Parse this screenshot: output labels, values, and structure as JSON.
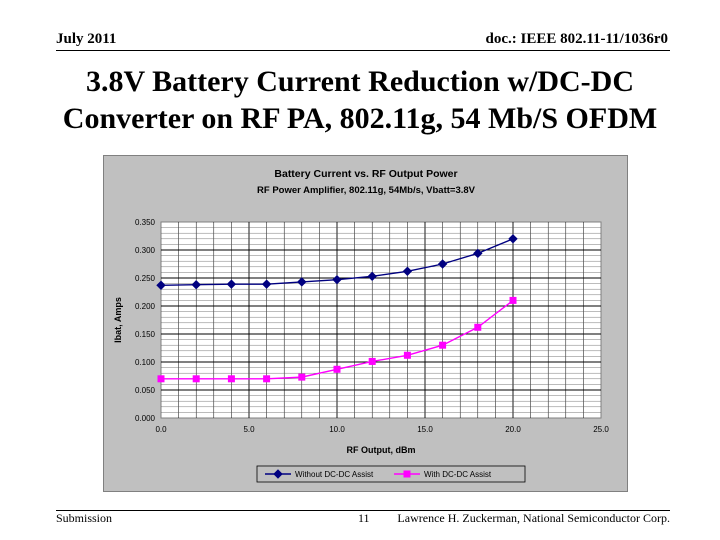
{
  "header": {
    "date": "July 2011",
    "doc": "doc.: IEEE 802.11-11/1036r0"
  },
  "slide": {
    "title_line1": "3.8V Battery Current Reduction w/DC-DC",
    "title_line2": "Converter on RF PA, 802.11g, 54 Mb/S OFDM"
  },
  "footer": {
    "submission": "Submission",
    "page": "11",
    "author": "Lawrence H. Zuckerman, National Semiconductor Corp."
  },
  "chart_data": {
    "type": "line",
    "title": "Battery Current vs. RF Output Power",
    "subtitle": "RF Power Amplifier, 802.11g, 54Mb/s, Vbatt=3.8V",
    "xlabel": "RF Output, dBm",
    "ylabel": "Ibat, Amps",
    "xlim": [
      0,
      25
    ],
    "ylim": [
      0,
      0.35
    ],
    "xticks": [
      "0.0",
      "5.0",
      "10.0",
      "15.0",
      "20.0",
      "25.0"
    ],
    "yticks": [
      "0.000",
      "0.050",
      "0.100",
      "0.150",
      "0.200",
      "0.250",
      "0.300",
      "0.350"
    ],
    "legend_position": "bottom",
    "x": [
      0,
      2,
      4,
      6,
      8,
      10,
      12,
      14,
      16,
      18,
      20
    ],
    "series": [
      {
        "name": "Without DC-DC Assist",
        "color": "#000080",
        "marker": "diamond",
        "values": [
          0.237,
          0.238,
          0.239,
          0.239,
          0.243,
          0.247,
          0.253,
          0.262,
          0.275,
          0.294,
          0.32
        ]
      },
      {
        "name": "With DC-DC Assist",
        "color": "#ff00ff",
        "marker": "square",
        "values": [
          0.07,
          0.07,
          0.07,
          0.07,
          0.073,
          0.087,
          0.101,
          0.112,
          0.13,
          0.162,
          0.21
        ]
      }
    ]
  }
}
